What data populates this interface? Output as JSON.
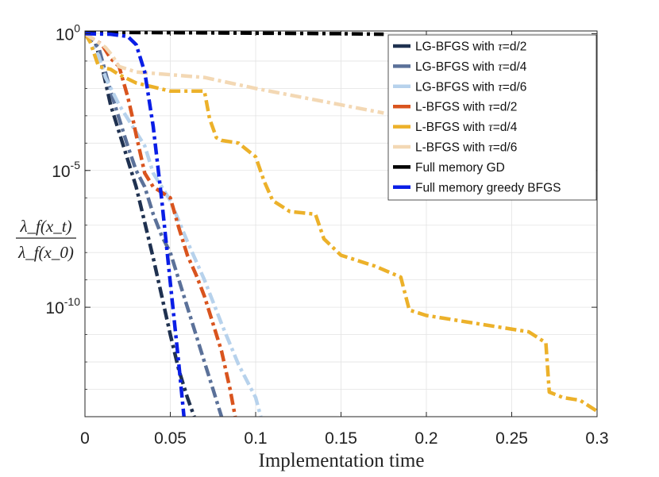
{
  "chart_data": {
    "type": "line",
    "title": "",
    "xlabel": "Implementation time",
    "ylabel": {
      "numerator": "λ_f(x_t)",
      "denominator": "λ_f(x_0)"
    },
    "xlim": [
      0,
      0.3
    ],
    "ylim_log10": [
      -14,
      0.1
    ],
    "y_scale": "log",
    "grid": true,
    "legend_position": "top-right",
    "x_ticks": [
      {
        "value": 0,
        "label": "0"
      },
      {
        "value": 0.05,
        "label": "0.05"
      },
      {
        "value": 0.1,
        "label": "0.1"
      },
      {
        "value": 0.15,
        "label": "0.15"
      },
      {
        "value": 0.2,
        "label": "0.2"
      },
      {
        "value": 0.25,
        "label": "0.25"
      },
      {
        "value": 0.3,
        "label": "0.3"
      }
    ],
    "y_ticks": [
      {
        "exp": 0,
        "base": "10",
        "sup": "0"
      },
      {
        "exp": -5,
        "base": "10",
        "sup": "-5"
      },
      {
        "exp": -10,
        "base": "10",
        "sup": "-10"
      }
    ],
    "series": [
      {
        "name": "LG-BFGS with τ=d/2",
        "label_prefix": "LG-BFGS with ",
        "label_tau": "τ",
        "label_suffix": "=d/2",
        "color": "#1f3150",
        "style": "dashdot",
        "points": [
          [
            0,
            0
          ],
          [
            0.006,
            -0.3
          ],
          [
            0.01,
            -1.2
          ],
          [
            0.015,
            -2.6
          ],
          [
            0.02,
            -3.6
          ],
          [
            0.025,
            -4.6
          ],
          [
            0.03,
            -5.6
          ],
          [
            0.035,
            -6.9
          ],
          [
            0.04,
            -8.2
          ],
          [
            0.045,
            -9.6
          ],
          [
            0.05,
            -11
          ],
          [
            0.055,
            -12.3
          ],
          [
            0.06,
            -13.3
          ],
          [
            0.064,
            -14
          ]
        ]
      },
      {
        "name": "LG-BFGS with τ=d/4",
        "label_prefix": "LG-BFGS with ",
        "label_tau": "τ",
        "label_suffix": "=d/4",
        "color": "#5b7199",
        "style": "dashdot",
        "points": [
          [
            0,
            0
          ],
          [
            0.008,
            -0.5
          ],
          [
            0.015,
            -2.1
          ],
          [
            0.02,
            -3.1
          ],
          [
            0.025,
            -4.1
          ],
          [
            0.03,
            -5
          ],
          [
            0.035,
            -5.6
          ],
          [
            0.04,
            -6.6
          ],
          [
            0.045,
            -7.4
          ],
          [
            0.05,
            -8
          ],
          [
            0.055,
            -9
          ],
          [
            0.06,
            -10
          ],
          [
            0.065,
            -11
          ],
          [
            0.07,
            -12
          ],
          [
            0.075,
            -13
          ],
          [
            0.08,
            -14
          ]
        ]
      },
      {
        "name": "LG-BFGS with τ=d/6",
        "label_prefix": "LG-BFGS with ",
        "label_tau": "τ",
        "label_suffix": "=d/6",
        "color": "#b7d2ec",
        "style": "dashdot",
        "points": [
          [
            0,
            0
          ],
          [
            0.008,
            -0.8
          ],
          [
            0.012,
            -1.6
          ],
          [
            0.02,
            -2.6
          ],
          [
            0.03,
            -3.6
          ],
          [
            0.035,
            -4.1
          ],
          [
            0.04,
            -5.1
          ],
          [
            0.05,
            -6.1
          ],
          [
            0.06,
            -7.6
          ],
          [
            0.07,
            -9
          ],
          [
            0.08,
            -10.6
          ],
          [
            0.09,
            -12.1
          ],
          [
            0.1,
            -13.3
          ],
          [
            0.103,
            -14
          ]
        ]
      },
      {
        "name": "L-BFGS with τ=d/2",
        "label_prefix": "L-BFGS with ",
        "label_tau": "τ",
        "label_suffix": "=d/2",
        "color": "#d9541e",
        "style": "dashdot",
        "points": [
          [
            0,
            0
          ],
          [
            0.01,
            -0.4
          ],
          [
            0.015,
            -0.9
          ],
          [
            0.02,
            -1.2
          ],
          [
            0.025,
            -2.3
          ],
          [
            0.028,
            -3.1
          ],
          [
            0.03,
            -3.7
          ],
          [
            0.035,
            -5.1
          ],
          [
            0.04,
            -5.6
          ],
          [
            0.05,
            -6
          ],
          [
            0.055,
            -7.1
          ],
          [
            0.06,
            -8.1
          ],
          [
            0.065,
            -8.8
          ],
          [
            0.07,
            -9.6
          ],
          [
            0.075,
            -10.6
          ],
          [
            0.08,
            -11.6
          ],
          [
            0.085,
            -13
          ],
          [
            0.088,
            -14
          ]
        ]
      },
      {
        "name": "L-BFGS with τ=d/4",
        "label_prefix": "L-BFGS with ",
        "label_tau": "τ",
        "label_suffix": "=d/4",
        "color": "#ecb12a",
        "style": "dashdot",
        "points": [
          [
            0,
            0
          ],
          [
            0.003,
            -0.3
          ],
          [
            0.008,
            -1.2
          ],
          [
            0.015,
            -1.3
          ],
          [
            0.02,
            -1.5
          ],
          [
            0.03,
            -1.8
          ],
          [
            0.05,
            -2.1
          ],
          [
            0.07,
            -2.1
          ],
          [
            0.073,
            -3.1
          ],
          [
            0.077,
            -3.8
          ],
          [
            0.08,
            -3.9
          ],
          [
            0.09,
            -4
          ],
          [
            0.1,
            -4.5
          ],
          [
            0.105,
            -5.4
          ],
          [
            0.11,
            -6.1
          ],
          [
            0.12,
            -6.5
          ],
          [
            0.135,
            -6.6
          ],
          [
            0.14,
            -7.5
          ],
          [
            0.15,
            -8.1
          ],
          [
            0.17,
            -8.5
          ],
          [
            0.185,
            -8.9
          ],
          [
            0.19,
            -10.1
          ],
          [
            0.2,
            -10.3
          ],
          [
            0.21,
            -10.4
          ],
          [
            0.23,
            -10.6
          ],
          [
            0.26,
            -10.9
          ],
          [
            0.27,
            -11.3
          ],
          [
            0.272,
            -13.1
          ],
          [
            0.28,
            -13.3
          ],
          [
            0.29,
            -13.4
          ],
          [
            0.3,
            -13.8
          ]
        ]
      },
      {
        "name": "L-BFGS with τ=d/6",
        "label_prefix": "L-BFGS with ",
        "label_tau": "τ",
        "label_suffix": "=d/6",
        "color": "#f3d8b4",
        "style": "dashdot",
        "points": [
          [
            0,
            0
          ],
          [
            0.005,
            -0.2
          ],
          [
            0.012,
            -0.5
          ],
          [
            0.016,
            -0.8
          ],
          [
            0.02,
            -1.2
          ],
          [
            0.03,
            -1.4
          ],
          [
            0.05,
            -1.5
          ],
          [
            0.07,
            -1.6
          ],
          [
            0.1,
            -2
          ],
          [
            0.15,
            -2.6
          ],
          [
            0.175,
            -2.9
          ]
        ]
      },
      {
        "name": "Full memory GD",
        "label_prefix": "Full memory GD",
        "label_tau": "",
        "label_suffix": "",
        "color": "#000000",
        "style": "dashdot",
        "points": [
          [
            0,
            0.05
          ],
          [
            0.05,
            0.04
          ],
          [
            0.1,
            0.02
          ],
          [
            0.15,
            0
          ],
          [
            0.175,
            -0.02
          ]
        ]
      },
      {
        "name": "Full memory greedy BFGS",
        "label_prefix": "Full memory greedy BFGS",
        "label_tau": "",
        "label_suffix": "",
        "color": "#0a1ee6",
        "style": "dashdot",
        "points": [
          [
            0,
            0
          ],
          [
            0.015,
            -0.02
          ],
          [
            0.025,
            -0.1
          ],
          [
            0.03,
            -0.4
          ],
          [
            0.035,
            -1.4
          ],
          [
            0.04,
            -3.4
          ],
          [
            0.045,
            -6.1
          ],
          [
            0.05,
            -9.1
          ],
          [
            0.055,
            -12.1
          ],
          [
            0.058,
            -14
          ]
        ]
      }
    ]
  }
}
